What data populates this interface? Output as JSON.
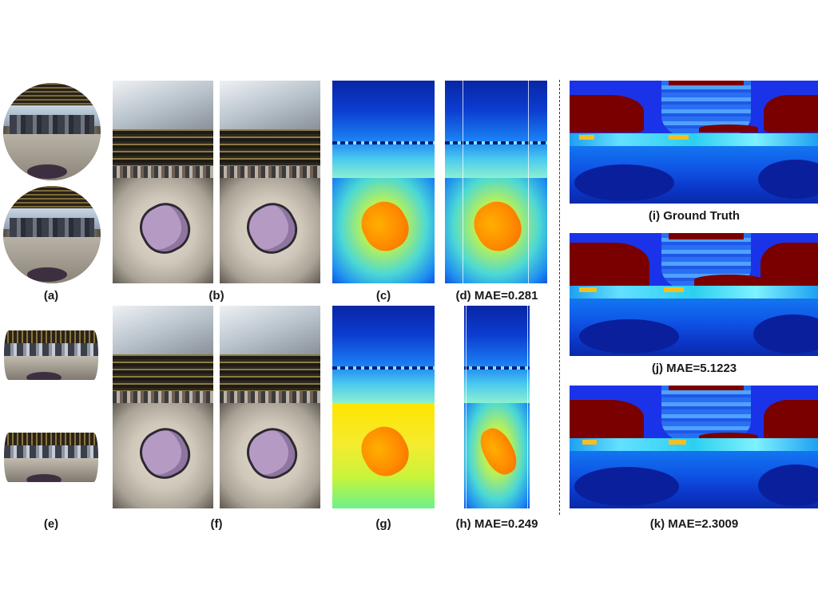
{
  "figure": {
    "captions": {
      "a": "(a)",
      "b": "(b)",
      "c": "(c)",
      "d": "(d) MAE=0.281",
      "e": "(e)",
      "f": "(f)",
      "g": "(g)",
      "h": "(h) MAE=0.249",
      "i": "(i) Ground Truth",
      "j": "(j) MAE=5.1223",
      "k": "(k) MAE=2.3009"
    },
    "colors": {
      "jet_low": "#0826a5",
      "jet_mid": "#49c8f0",
      "jet_high": "#f2e62a",
      "jet_max": "#7a0000",
      "car_purple": "#b59bc4"
    }
  }
}
